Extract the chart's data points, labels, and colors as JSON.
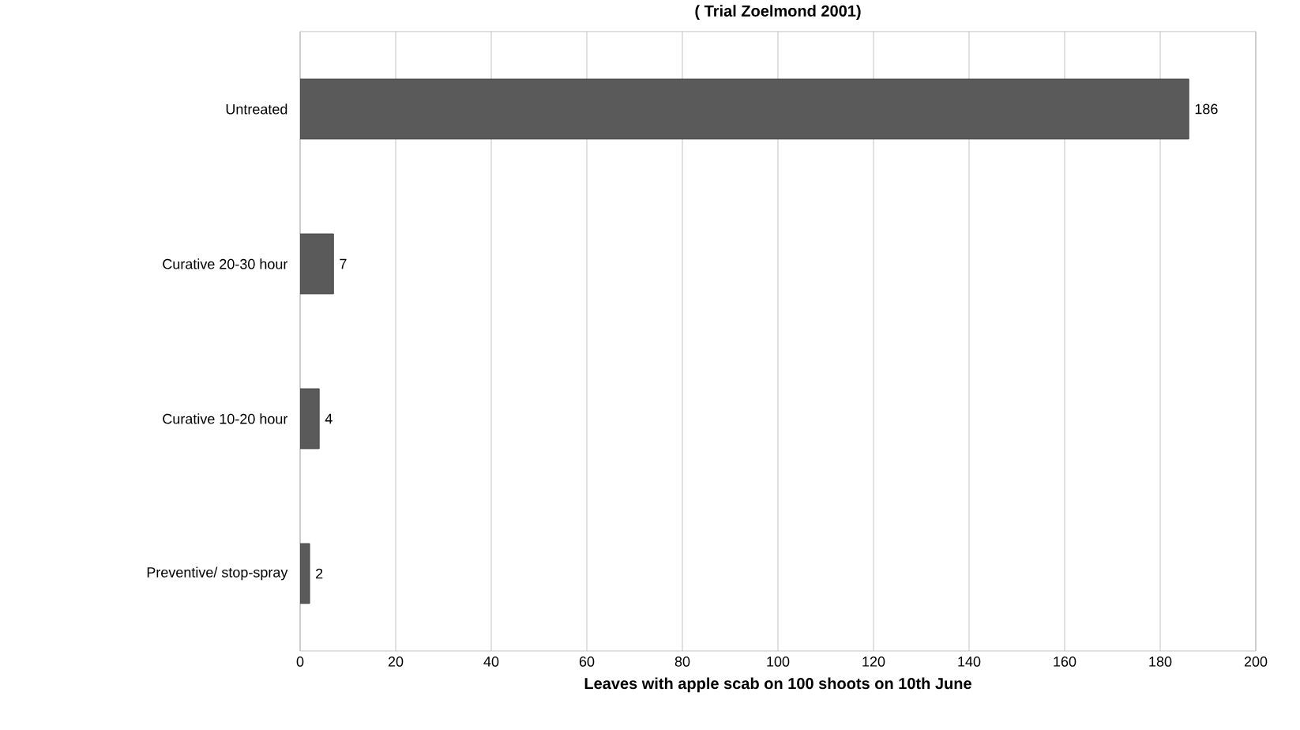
{
  "chart_data": {
    "type": "bar",
    "orientation": "horizontal",
    "title": "( Trial Zoelmond 2001)",
    "xlabel": "Leaves with apple scab on 100 shoots on 10th  June",
    "categories": [
      "Untreated",
      "Curative 20-30 hour",
      "Curative 10-20 hour",
      "Preventive/ stop-spray"
    ],
    "values": [
      186,
      7,
      4,
      2
    ],
    "color": "#5a5a5a",
    "data_labels": true,
    "xlim": [
      0,
      200
    ],
    "xticks": [
      0,
      20,
      40,
      60,
      80,
      100,
      120,
      140,
      160,
      180,
      200
    ],
    "grid": "x"
  }
}
